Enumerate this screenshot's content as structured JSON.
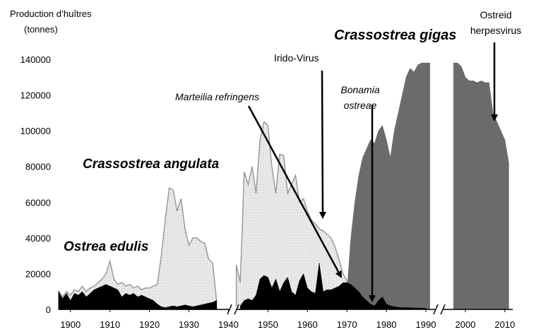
{
  "chart_data": {
    "type": "area",
    "ylabel": [
      "Production d’huîtres",
      "(tonnes)"
    ],
    "xlim": [
      1897,
      2012
    ],
    "ylim": [
      0,
      140000
    ],
    "xticks": [
      1900,
      1910,
      1920,
      1930,
      1940,
      1950,
      1960,
      1970,
      1980,
      1990,
      2000,
      2010
    ],
    "yticks": [
      0,
      20000,
      40000,
      60000,
      80000,
      100000,
      120000,
      140000
    ],
    "series": [
      {
        "name": "Ostrea edulis",
        "color": "#000000",
        "x": [
          1897,
          1898,
          1899,
          1900,
          1901,
          1902,
          1903,
          1904,
          1905,
          1906,
          1907,
          1908,
          1909,
          1910,
          1911,
          1912,
          1913,
          1914,
          1915,
          1916,
          1917,
          1918,
          1919,
          1920,
          1921,
          1922,
          1923,
          1924,
          1925,
          1926,
          1927,
          1928,
          1929,
          1930,
          1931,
          1932,
          1933,
          1934,
          1935,
          1936,
          1937,
          1940,
          1943,
          1944,
          1945,
          1946,
          1947,
          1948,
          1949,
          1950,
          1951,
          1952,
          1953,
          1954,
          1955,
          1956,
          1957,
          1958,
          1959,
          1960,
          1961,
          1962,
          1963,
          1964,
          1965,
          1966,
          1967,
          1968,
          1969,
          1970,
          1971,
          1972,
          1973,
          1974,
          1975,
          1976,
          1977,
          1978,
          1979,
          1980,
          1981,
          1982,
          1983,
          1984,
          1985,
          1986,
          1987,
          1988,
          1989,
          1990
        ],
        "values": [
          10000,
          6000,
          9000,
          5000,
          9000,
          8000,
          10000,
          7000,
          9000,
          11000,
          12000,
          13000,
          14000,
          13000,
          12000,
          11000,
          7000,
          9000,
          8000,
          9000,
          7000,
          8000,
          7000,
          6000,
          5000,
          3000,
          1500,
          1000,
          1500,
          2000,
          1500,
          2000,
          2500,
          2000,
          1500,
          2000,
          2500,
          3000,
          3500,
          4000,
          5000,
          null,
          2000,
          5000,
          6000,
          5000,
          8000,
          17000,
          19000,
          18000,
          12000,
          17000,
          10000,
          15000,
          18000,
          10000,
          8000,
          16000,
          20000,
          12000,
          10000,
          9000,
          26000,
          10000,
          11000,
          11000,
          12000,
          13000,
          15000,
          15000,
          14000,
          12000,
          10000,
          7000,
          5000,
          3000,
          2000,
          5000,
          7000,
          3000,
          2000,
          1500,
          1200,
          1000,
          1000,
          900,
          800,
          800,
          700,
          600
        ]
      },
      {
        "name": "Crassostrea angulata",
        "color": "#9a9a9a",
        "x": [
          1897,
          1898,
          1899,
          1900,
          1901,
          1902,
          1903,
          1904,
          1905,
          1906,
          1907,
          1908,
          1909,
          1910,
          1911,
          1912,
          1913,
          1914,
          1915,
          1916,
          1917,
          1918,
          1919,
          1920,
          1921,
          1922,
          1923,
          1924,
          1925,
          1926,
          1927,
          1928,
          1929,
          1930,
          1931,
          1932,
          1933,
          1934,
          1935,
          1936,
          1937,
          1940,
          1942,
          1943,
          1944,
          1945,
          1946,
          1947,
          1948,
          1949,
          1950,
          1951,
          1952,
          1953,
          1954,
          1955,
          1956,
          1957,
          1958,
          1959,
          1960,
          1961,
          1962,
          1963,
          1964,
          1965,
          1966,
          1967,
          1968,
          1969,
          1970
        ],
        "values": [
          10000,
          7000,
          10000,
          8000,
          11000,
          10000,
          13000,
          10000,
          12000,
          13000,
          15000,
          17000,
          20000,
          27000,
          17000,
          14000,
          15000,
          13000,
          14000,
          12000,
          13000,
          11000,
          12000,
          12000,
          13000,
          14000,
          30000,
          50000,
          68000,
          67000,
          55000,
          62000,
          45000,
          36000,
          40000,
          40000,
          38000,
          37000,
          28000,
          26000,
          5000,
          null,
          25000,
          15000,
          77000,
          70000,
          80000,
          65000,
          95000,
          105000,
          103000,
          80000,
          65000,
          87000,
          86000,
          65000,
          70000,
          75000,
          60000,
          62000,
          55000,
          50000,
          48000,
          45000,
          44000,
          42000,
          40000,
          35000,
          28000,
          20000,
          16000
        ]
      },
      {
        "name": "Crassostrea gigas",
        "color": "#6b6b6b",
        "x": [
          1970,
          1971,
          1972,
          1973,
          1974,
          1975,
          1976,
          1977,
          1978,
          1979,
          1980,
          1981,
          1982,
          1983,
          1984,
          1985,
          1986,
          1987,
          1988,
          1989,
          1990,
          1991,
          1994,
          1997,
          1998,
          1999,
          2000,
          2001,
          2002,
          2003,
          2004,
          2005,
          2006,
          2007,
          2008,
          2009,
          2010,
          2011
        ],
        "values": [
          10000,
          40000,
          60000,
          75000,
          85000,
          90000,
          95000,
          93000,
          100000,
          103000,
          95000,
          85000,
          100000,
          110000,
          120000,
          130000,
          135000,
          133000,
          137000,
          138000,
          138000,
          138000,
          null,
          138000,
          138000,
          136000,
          130000,
          128000,
          128000,
          127000,
          128000,
          127000,
          127000,
          110000,
          105000,
          100000,
          95000,
          82000
        ]
      }
    ],
    "annotations": [
      {
        "lines": [
          "Marteilia refringens"
        ]
      },
      {
        "lines": [
          "Irido-Virus"
        ]
      },
      {
        "lines": [
          "Bonamia",
          "ostreae"
        ]
      },
      {
        "lines": [
          "Ostreid",
          "herpesvirus"
        ]
      }
    ]
  }
}
